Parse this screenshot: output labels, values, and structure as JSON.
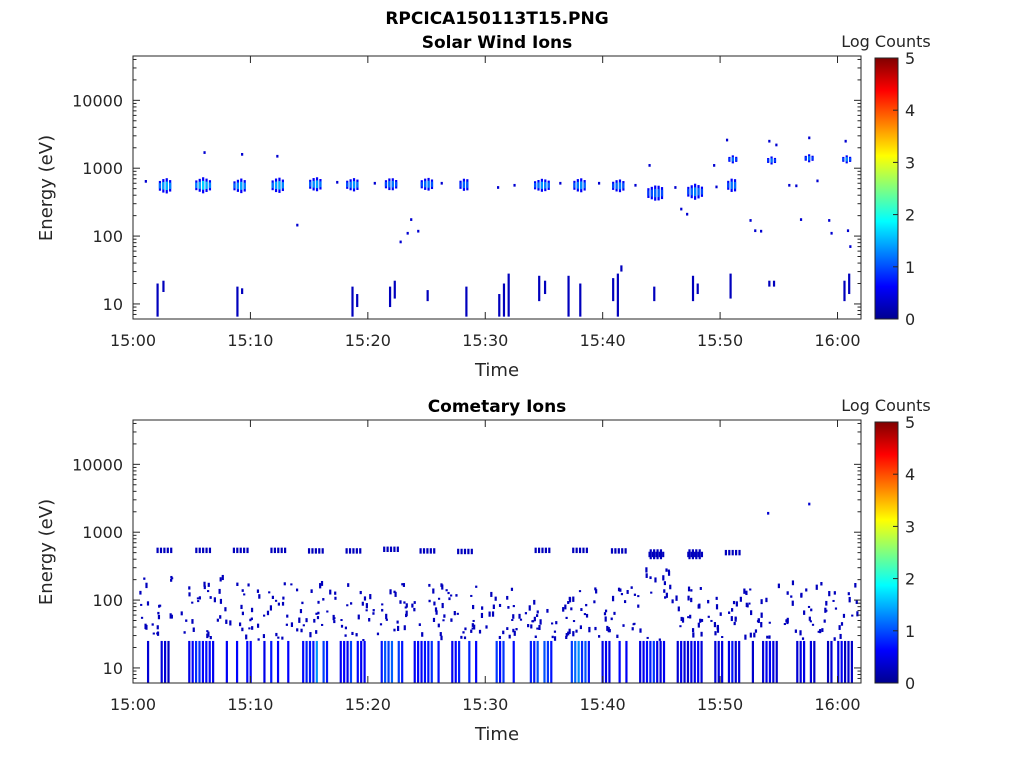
{
  "figure_title": "RPCICA150113T15.PNG",
  "chart_data": [
    {
      "type": "heatmap",
      "title": "Solar Wind Ions",
      "xlabel": "Time",
      "ylabel": "Energy (eV)",
      "x_ticks": [
        "15:00",
        "15:10",
        "15:20",
        "15:30",
        "15:40",
        "15:50",
        "16:00"
      ],
      "xlim_minutes": [
        0,
        62
      ],
      "y_scale": "log",
      "ylim": [
        6,
        45000
      ],
      "y_ticks": [
        10,
        100,
        1000,
        10000
      ],
      "y_tick_labels": [
        "10",
        "100",
        "1000",
        "10000"
      ],
      "colorbar": {
        "label": "Log Counts",
        "min": 0,
        "max": 5,
        "ticks": [
          "0",
          "1",
          "2",
          "3",
          "4",
          "5"
        ]
      },
      "grid": false,
      "clusters": [
        {
          "t": 2.7,
          "e": 550,
          "w": 1.0,
          "d": 0.12,
          "v": 1.6
        },
        {
          "t": 5.9,
          "e": 560,
          "w": 1.2,
          "d": 0.12,
          "v": 1.7
        },
        {
          "t": 9.1,
          "e": 550,
          "w": 1.1,
          "d": 0.11,
          "v": 1.5
        },
        {
          "t": 12.3,
          "e": 560,
          "w": 1.0,
          "d": 0.12,
          "v": 1.6
        },
        {
          "t": 15.5,
          "e": 580,
          "w": 1.0,
          "d": 0.11,
          "v": 1.5
        },
        {
          "t": 18.7,
          "e": 570,
          "w": 1.1,
          "d": 0.1,
          "v": 1.4
        },
        {
          "t": 21.9,
          "e": 580,
          "w": 0.9,
          "d": 0.1,
          "v": 1.3
        },
        {
          "t": 25.0,
          "e": 580,
          "w": 1.0,
          "d": 0.1,
          "v": 1.3
        },
        {
          "t": 28.2,
          "e": 570,
          "w": 0.8,
          "d": 0.1,
          "v": 1.2
        },
        {
          "t": 34.8,
          "e": 560,
          "w": 1.3,
          "d": 0.1,
          "v": 1.4
        },
        {
          "t": 38.0,
          "e": 560,
          "w": 1.0,
          "d": 0.11,
          "v": 1.4
        },
        {
          "t": 41.3,
          "e": 550,
          "w": 1.0,
          "d": 0.1,
          "v": 1.3
        },
        {
          "t": 44.5,
          "e": 430,
          "w": 1.4,
          "d": 0.12,
          "v": 1.2
        },
        {
          "t": 47.8,
          "e": 450,
          "w": 1.2,
          "d": 0.12,
          "v": 1.3
        },
        {
          "t": 51.0,
          "e": 560,
          "w": 0.8,
          "d": 0.11,
          "v": 1.3
        },
        {
          "t": 51.0,
          "e": 1350,
          "w": 0.6,
          "d": 0.06,
          "v": 1.2
        },
        {
          "t": 54.3,
          "e": 1300,
          "w": 0.6,
          "d": 0.06,
          "v": 1.2
        },
        {
          "t": 57.5,
          "e": 1400,
          "w": 0.6,
          "d": 0.06,
          "v": 1.2
        },
        {
          "t": 60.7,
          "e": 1350,
          "w": 0.6,
          "d": 0.06,
          "v": 1.3
        }
      ],
      "specks": [
        {
          "t": 1.0,
          "e": 640
        },
        {
          "t": 6.0,
          "e": 1700
        },
        {
          "t": 9.2,
          "e": 1600
        },
        {
          "t": 12.2,
          "e": 1500
        },
        {
          "t": 13.9,
          "e": 145
        },
        {
          "t": 17.3,
          "e": 620
        },
        {
          "t": 20.5,
          "e": 600
        },
        {
          "t": 22.7,
          "e": 82
        },
        {
          "t": 23.3,
          "e": 110
        },
        {
          "t": 23.6,
          "e": 175
        },
        {
          "t": 24.2,
          "e": 118
        },
        {
          "t": 26.2,
          "e": 600
        },
        {
          "t": 31.0,
          "e": 520
        },
        {
          "t": 32.4,
          "e": 560
        },
        {
          "t": 36.3,
          "e": 600
        },
        {
          "t": 39.6,
          "e": 600
        },
        {
          "t": 42.7,
          "e": 560
        },
        {
          "t": 43.9,
          "e": 1100
        },
        {
          "t": 46.1,
          "e": 520
        },
        {
          "t": 46.6,
          "e": 250
        },
        {
          "t": 47.1,
          "e": 210
        },
        {
          "t": 49.4,
          "e": 1100
        },
        {
          "t": 49.6,
          "e": 530
        },
        {
          "t": 50.5,
          "e": 2600
        },
        {
          "t": 52.5,
          "e": 170
        },
        {
          "t": 52.9,
          "e": 120
        },
        {
          "t": 53.4,
          "e": 118
        },
        {
          "t": 54.1,
          "e": 2500
        },
        {
          "t": 54.7,
          "e": 2200
        },
        {
          "t": 55.8,
          "e": 560
        },
        {
          "t": 56.4,
          "e": 550
        },
        {
          "t": 56.8,
          "e": 175
        },
        {
          "t": 57.5,
          "e": 2800
        },
        {
          "t": 58.2,
          "e": 650
        },
        {
          "t": 59.2,
          "e": 170
        },
        {
          "t": 59.4,
          "e": 110
        },
        {
          "t": 60.6,
          "e": 2500
        },
        {
          "t": 60.8,
          "e": 120
        },
        {
          "t": 61.0,
          "e": 70
        }
      ],
      "streaks": [
        {
          "t": 2.0,
          "e0": 6.5,
          "e1": 20
        },
        {
          "t": 2.5,
          "e0": 15,
          "e1": 22
        },
        {
          "t": 8.8,
          "e0": 6.5,
          "e1": 18
        },
        {
          "t": 9.2,
          "e0": 14,
          "e1": 17
        },
        {
          "t": 18.6,
          "e0": 6.5,
          "e1": 18
        },
        {
          "t": 19.0,
          "e0": 9,
          "e1": 14
        },
        {
          "t": 21.8,
          "e0": 9,
          "e1": 18
        },
        {
          "t": 22.2,
          "e0": 12,
          "e1": 22
        },
        {
          "t": 25.0,
          "e0": 11,
          "e1": 16
        },
        {
          "t": 28.3,
          "e0": 6.5,
          "e1": 18
        },
        {
          "t": 31.1,
          "e0": 6.5,
          "e1": 14
        },
        {
          "t": 31.5,
          "e0": 6.5,
          "e1": 20
        },
        {
          "t": 31.9,
          "e0": 6.5,
          "e1": 28
        },
        {
          "t": 34.5,
          "e0": 11,
          "e1": 26
        },
        {
          "t": 35.0,
          "e0": 14,
          "e1": 22
        },
        {
          "t": 37.0,
          "e0": 6.5,
          "e1": 26
        },
        {
          "t": 38.0,
          "e0": 6.5,
          "e1": 20
        },
        {
          "t": 40.8,
          "e0": 11,
          "e1": 24
        },
        {
          "t": 41.2,
          "e0": 6.5,
          "e1": 28
        },
        {
          "t": 41.5,
          "e0": 30,
          "e1": 37
        },
        {
          "t": 44.3,
          "e0": 11,
          "e1": 18
        },
        {
          "t": 47.6,
          "e0": 11,
          "e1": 26
        },
        {
          "t": 48.0,
          "e0": 14,
          "e1": 20
        },
        {
          "t": 50.8,
          "e0": 12,
          "e1": 28
        },
        {
          "t": 54.1,
          "e0": 18,
          "e1": 22
        },
        {
          "t": 54.5,
          "e0": 18,
          "e1": 22
        },
        {
          "t": 60.5,
          "e0": 11,
          "e1": 22
        },
        {
          "t": 60.9,
          "e0": 14,
          "e1": 28
        }
      ]
    },
    {
      "type": "heatmap",
      "title": "Cometary Ions",
      "xlabel": "Time",
      "ylabel": "Energy (eV)",
      "x_ticks": [
        "15:00",
        "15:10",
        "15:20",
        "15:30",
        "15:40",
        "15:50",
        "16:00"
      ],
      "xlim_minutes": [
        0,
        62
      ],
      "y_scale": "log",
      "ylim": [
        6,
        45000
      ],
      "y_ticks": [
        10,
        100,
        1000,
        10000
      ],
      "y_tick_labels": [
        "10",
        "100",
        "1000",
        "10000"
      ],
      "colorbar": {
        "label": "Log Counts",
        "min": 0,
        "max": 5,
        "ticks": [
          "0",
          "1",
          "2",
          "3",
          "4",
          "5"
        ]
      },
      "grid": false,
      "bursts": [
        {
          "t": 2.0,
          "v": 0.6,
          "top": 240
        },
        {
          "t": 5.8,
          "v": 1.0,
          "top": 180
        },
        {
          "t": 9.0,
          "v": 1.1,
          "top": 200
        },
        {
          "t": 12.2,
          "v": 1.0,
          "top": 170
        },
        {
          "t": 15.5,
          "v": 1.3,
          "top": 190
        },
        {
          "t": 18.7,
          "v": 1.1,
          "top": 160
        },
        {
          "t": 21.9,
          "v": 1.3,
          "top": 180
        },
        {
          "t": 25.0,
          "v": 1.1,
          "top": 170
        },
        {
          "t": 28.2,
          "v": 1.1,
          "top": 160
        },
        {
          "t": 31.4,
          "v": 1.2,
          "top": 150
        },
        {
          "t": 34.6,
          "v": 1.2,
          "top": 120
        },
        {
          "t": 37.8,
          "v": 1.4,
          "top": 140
        },
        {
          "t": 41.0,
          "v": 1.0,
          "top": 150
        },
        {
          "t": 44.2,
          "v": 0.9,
          "top": 300
        },
        {
          "t": 47.4,
          "v": 0.8,
          "top": 180
        },
        {
          "t": 50.6,
          "v": 0.8,
          "top": 170
        },
        {
          "t": 53.8,
          "v": 0.7,
          "top": 150
        },
        {
          "t": 57.0,
          "v": 0.7,
          "top": 180
        },
        {
          "t": 60.2,
          "v": 0.6,
          "top": 170
        }
      ],
      "bands": [
        {
          "t": 2.6,
          "e": 540
        },
        {
          "t": 5.9,
          "e": 540
        },
        {
          "t": 9.1,
          "e": 540
        },
        {
          "t": 12.3,
          "e": 540
        },
        {
          "t": 15.5,
          "e": 530
        },
        {
          "t": 18.7,
          "e": 530
        },
        {
          "t": 21.9,
          "e": 560
        },
        {
          "t": 25.0,
          "e": 530
        },
        {
          "t": 28.2,
          "e": 520
        },
        {
          "t": 34.8,
          "e": 540
        },
        {
          "t": 38.0,
          "e": 540
        },
        {
          "t": 41.3,
          "e": 530
        },
        {
          "t": 44.5,
          "e": 470
        },
        {
          "t": 47.8,
          "e": 470
        },
        {
          "t": 51.0,
          "e": 500
        }
      ],
      "specks": [
        {
          "t": 54.0,
          "e": 1900
        },
        {
          "t": 57.5,
          "e": 2600
        }
      ]
    }
  ]
}
